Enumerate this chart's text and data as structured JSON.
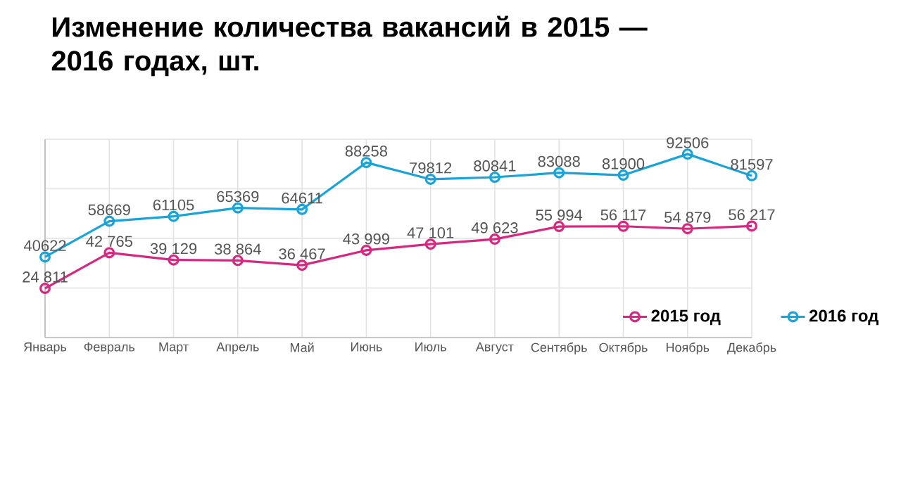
{
  "chart_data": {
    "type": "line",
    "title": "Изменение количества вакансий в 2015 — 2016 годах, шт.",
    "categories": [
      "Январь",
      "Февраль",
      "Март",
      "Апрель",
      "Май",
      "Июнь",
      "Июль",
      "Август",
      "Сентябрь",
      "Октябрь",
      "Ноябрь",
      "Декабрь"
    ],
    "series": [
      {
        "name": "2015 год",
        "color": "#d6287f",
        "values": [
          24811,
          42765,
          39129,
          38864,
          36467,
          43999,
          47101,
          49623,
          55994,
          56117,
          54879,
          56217
        ],
        "value_labels": [
          "24 811",
          "42 765",
          "39 129",
          "38 864",
          "36 467",
          "43 999",
          "47 101",
          "49 623",
          "55 994",
          "56 117",
          "54 879",
          "56 217"
        ]
      },
      {
        "name": "2016 год",
        "color": "#1aa3d8",
        "values": [
          40622,
          58669,
          61105,
          65369,
          64611,
          88258,
          79812,
          80841,
          83088,
          81900,
          92506,
          81597
        ],
        "value_labels": [
          "40622",
          "58669",
          "61105",
          "65369",
          "64611",
          "88258",
          "79812",
          "80841",
          "83088",
          "81900",
          "92506",
          "81597"
        ]
      }
    ],
    "ylim": [
      0,
      100000
    ],
    "yticks": [
      {
        "value": 0,
        "label": null
      },
      {
        "value": 25000,
        "label": null
      },
      {
        "value": 50000,
        "label": null
      },
      {
        "value": 75000,
        "label": null
      },
      {
        "value": 100000,
        "label": null
      }
    ],
    "grid": true,
    "legend": "bottom right",
    "marker": "circle",
    "tick_labels": "x"
  }
}
